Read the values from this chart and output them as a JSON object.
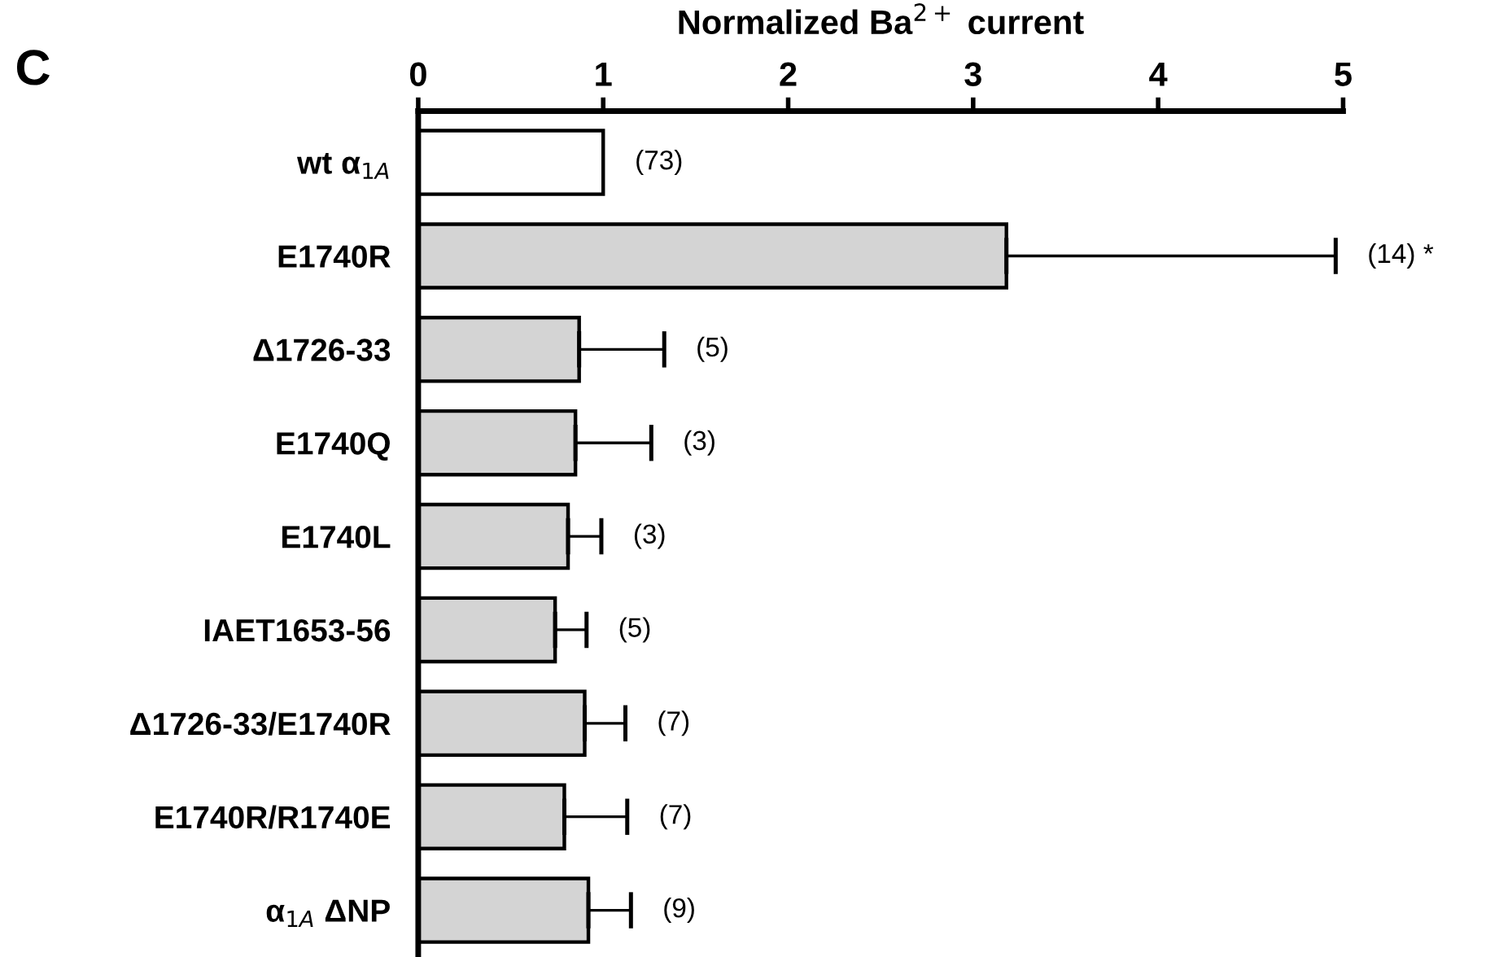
{
  "chart_data": {
    "type": "bar",
    "orientation": "horizontal",
    "xlabel": "Normalized Ba$^{2+}$ current",
    "categories": [
      "wt α$_{1A}$",
      "E1740R",
      "Δ1726-33",
      "E1740Q",
      "E1740L",
      "IAET1653-56",
      "Δ1726-33/E1740R",
      "E1740R/R1740E",
      "α$_{1A}$ ΔNP"
    ],
    "values": [
      1.0,
      3.18,
      0.87,
      0.85,
      0.81,
      0.74,
      0.9,
      0.79,
      0.92
    ],
    "errors": [
      null,
      1.78,
      0.46,
      0.41,
      0.18,
      0.17,
      0.22,
      0.34,
      0.23
    ],
    "colors": [
      "#ffffff",
      "#d4d4d4",
      "#d4d4d4",
      "#d4d4d4",
      "#d4d4d4",
      "#d4d4d4",
      "#d4d4d4",
      "#d4d4d4",
      "#d4d4d4"
    ],
    "xlim": [
      0,
      5
    ],
    "xticks": [
      0,
      1,
      2,
      3,
      4,
      5
    ],
    "grid": false,
    "legend": false,
    "annotations": [
      "C",
      {
        "text": "(73)",
        "x": 1.0,
        "y": "wt α$_{1A}$"
      },
      {
        "text": "(14) *",
        "x": 4.96,
        "y": "E1740R"
      },
      {
        "text": "(5)",
        "x": 1.33,
        "y": "Δ1726-33"
      },
      {
        "text": "(3)",
        "x": 1.26,
        "y": "E1740Q"
      },
      {
        "text": "(3)",
        "x": 0.99,
        "y": "E1740L"
      },
      {
        "text": "(5)",
        "x": 0.91,
        "y": "IAET1653-56"
      },
      {
        "text": "(7)",
        "x": 1.12,
        "y": "Δ1726-33/E1740R"
      },
      {
        "text": "(7)",
        "x": 1.13,
        "y": "E1740R/R1740E"
      },
      {
        "text": "(9)",
        "x": 1.15,
        "y": "α$_{1A}$ ΔNP"
      }
    ]
  }
}
